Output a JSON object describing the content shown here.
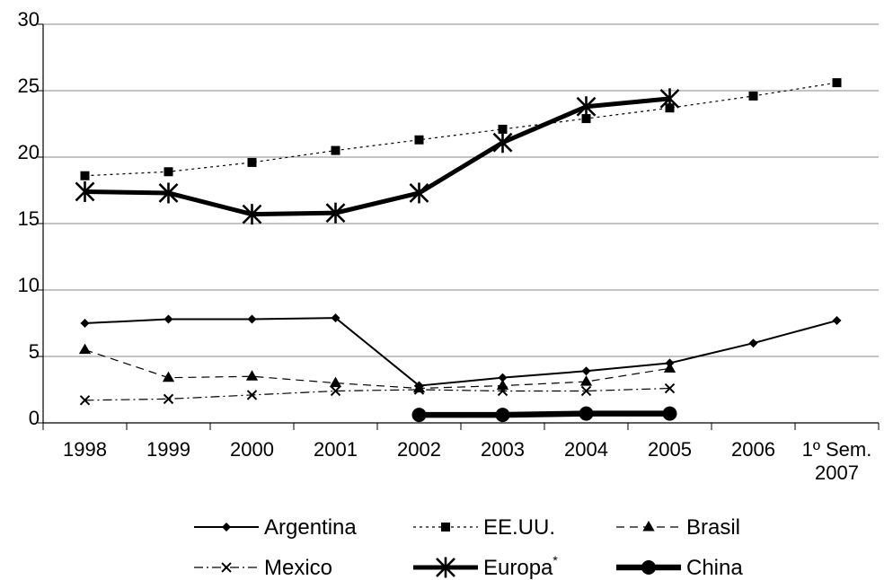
{
  "chart_data": {
    "type": "line",
    "categories": [
      "1998",
      "1999",
      "2000",
      "2001",
      "2002",
      "2003",
      "2004",
      "2005",
      "2006",
      "1º Sem. 2007"
    ],
    "category_lines": [
      [
        "1998"
      ],
      [
        "1999"
      ],
      [
        "2000"
      ],
      [
        "2001"
      ],
      [
        "2002"
      ],
      [
        "2003"
      ],
      [
        "2004"
      ],
      [
        "2005"
      ],
      [
        "2006"
      ],
      [
        "1º Sem.",
        "2007"
      ]
    ],
    "ylim": [
      0,
      30
    ],
    "yticks": [
      "0",
      "5",
      "10",
      "15",
      "20",
      "25",
      "30"
    ],
    "grid": true,
    "legend_position": "bottom",
    "series": [
      {
        "name": "Argentina",
        "values": [
          7.5,
          7.8,
          7.8,
          7.9,
          2.8,
          3.4,
          3.9,
          4.5,
          6.0,
          7.7
        ]
      },
      {
        "name": "EE.UU.",
        "values": [
          18.6,
          18.9,
          19.6,
          20.5,
          21.3,
          22.1,
          22.9,
          23.7,
          24.6,
          25.6
        ]
      },
      {
        "name": "Brasil",
        "values": [
          5.5,
          3.4,
          3.5,
          3.0,
          2.6,
          2.8,
          3.1,
          4.1,
          null,
          null
        ]
      },
      {
        "name": "Mexico",
        "values": [
          1.7,
          1.8,
          2.1,
          2.4,
          2.5,
          2.4,
          2.4,
          2.6,
          null,
          null
        ]
      },
      {
        "name": "Europa",
        "name_sup": "*",
        "values": [
          17.4,
          17.3,
          15.7,
          15.8,
          17.3,
          21.1,
          23.8,
          24.4,
          null,
          null
        ]
      },
      {
        "name": "China",
        "values": [
          null,
          null,
          null,
          null,
          0.6,
          0.6,
          0.7,
          0.7,
          null,
          null
        ]
      }
    ]
  }
}
